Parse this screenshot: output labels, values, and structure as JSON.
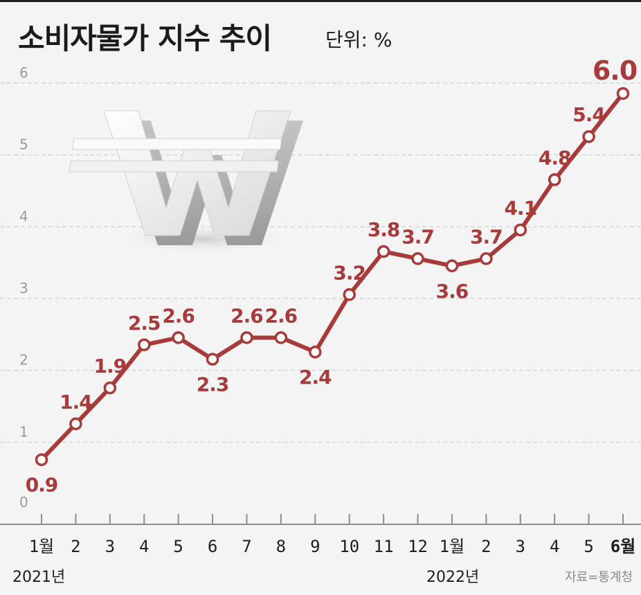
{
  "header": {
    "title": "소비자물가 지수 추이",
    "unit": "단위: %"
  },
  "source": "자료=통계청",
  "illustration": "won-currency-symbol-3d",
  "colors": {
    "series": "#a83a3a",
    "background": "#f4f4f4",
    "grid": "#c9c9c9",
    "text": "#1b1b1b"
  },
  "chart_data": {
    "type": "line",
    "title": "소비자물가 지수 추이",
    "ylabel": "단위: %",
    "ylim": [
      0,
      6
    ],
    "yticks": [
      0,
      1,
      2,
      3,
      4,
      5,
      6
    ],
    "grid": true,
    "categories": [
      "1월",
      "2",
      "3",
      "4",
      "5",
      "6",
      "7",
      "8",
      "9",
      "10",
      "11",
      "12",
      "1월",
      "2",
      "3",
      "4",
      "5",
      "6월"
    ],
    "year_labels": [
      "2021년",
      "2022년"
    ],
    "series": [
      {
        "values": [
          0.9,
          1.4,
          1.9,
          2.5,
          2.6,
          2.3,
          2.6,
          2.6,
          2.4,
          3.2,
          3.8,
          3.7,
          3.6,
          3.7,
          4.1,
          4.8,
          5.4,
          6.0
        ],
        "labels": [
          "0.9",
          "1.4",
          "1.9",
          "2.5",
          "2.6",
          "2.3",
          "2.6",
          "2.6",
          "2.4",
          "3.2",
          "3.8",
          "3.7",
          "3.6",
          "3.7",
          "4.1",
          "4.8",
          "5.4",
          "6.0"
        ]
      }
    ]
  }
}
